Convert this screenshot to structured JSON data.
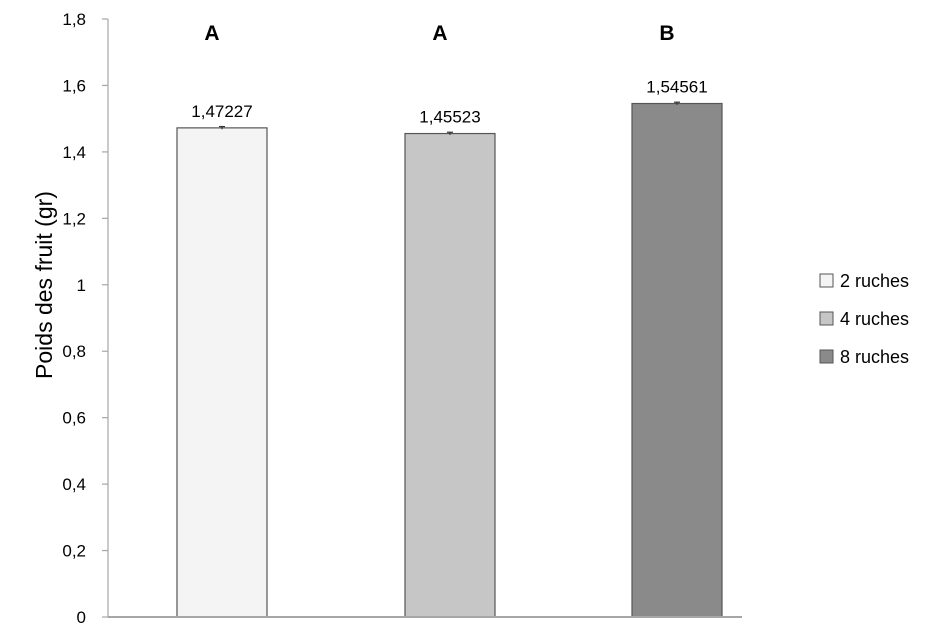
{
  "chart_data": {
    "type": "bar",
    "title": "",
    "xlabel": "",
    "ylabel": "Poids des fruit (gr)",
    "ylim": [
      0,
      1.8
    ],
    "yticks": [
      "0",
      "0,2",
      "0,4",
      "0,6",
      "0,8",
      "1",
      "1,2",
      "1,4",
      "1,6",
      "1,8"
    ],
    "grid": false,
    "legend_position": "right",
    "categories": [
      "2 ruches",
      "4 ruches",
      "8 ruches"
    ],
    "values": [
      1.47227,
      1.45523,
      1.54561
    ],
    "value_labels": [
      "1,47227",
      "1,45523",
      "1,54561"
    ],
    "significance_letters": [
      "A",
      "A",
      "B"
    ],
    "error_bars": [
      0.004,
      0.004,
      0.004
    ],
    "colors": [
      "#f4f4f4",
      "#c6c6c6",
      "#8a8a8a"
    ],
    "legend": [
      {
        "label": "2 ruches",
        "color": "#f4f4f4"
      },
      {
        "label": "4 ruches",
        "color": "#c6c6c6"
      },
      {
        "label": "8 ruches",
        "color": "#8a8a8a"
      }
    ]
  }
}
